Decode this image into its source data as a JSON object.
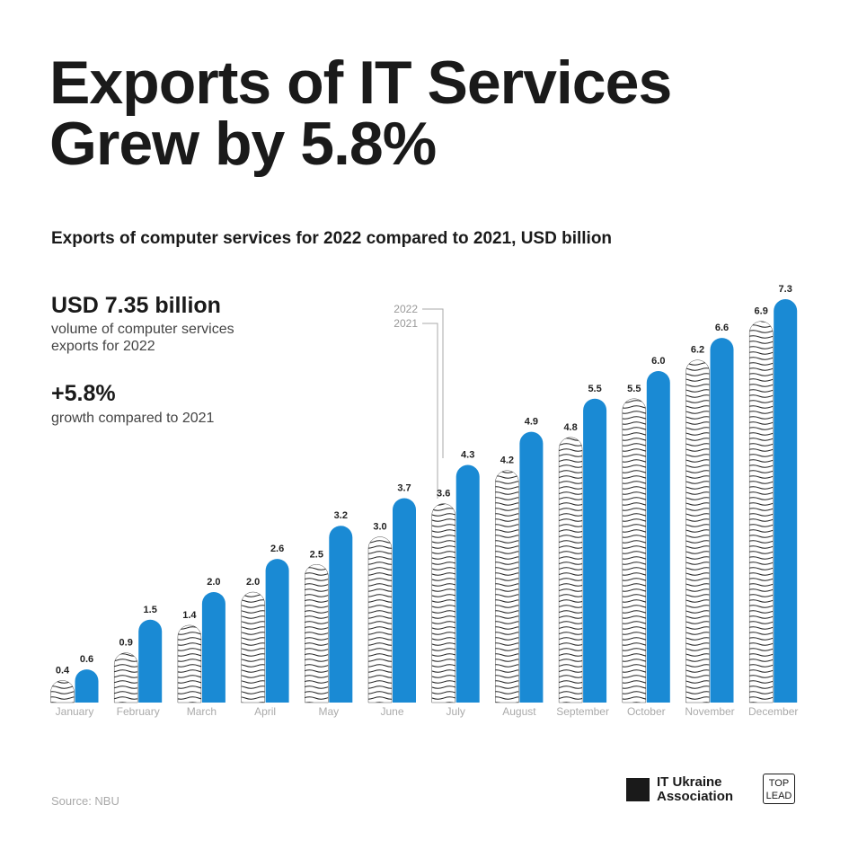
{
  "chart_data": {
    "type": "bar",
    "title": "Exports of IT Services Grew by 5.8%",
    "subtitle": "Exports of computer services for 2022 compared to 2021, USD billion",
    "highlights": [
      {
        "value": "USD 7.35 billion",
        "text": "volume of computer services exports for 2022"
      },
      {
        "value": "+5.8%",
        "text": "growth compared to 2021"
      }
    ],
    "categories": [
      "January",
      "February",
      "March",
      "April",
      "May",
      "June",
      "July",
      "August",
      "September",
      "October",
      "November",
      "December"
    ],
    "series": [
      {
        "name": "2021",
        "color": "#222222",
        "pattern": "waves",
        "values": [
          0.4,
          0.9,
          1.4,
          2.0,
          2.5,
          3.0,
          3.6,
          4.2,
          4.8,
          5.5,
          6.2,
          6.9
        ],
        "value_labels": [
          "0.4",
          "0.9",
          "1.4",
          "2.0",
          "2.5",
          "3.0",
          "3.6",
          "4.2",
          "4.8",
          "5.5",
          "6.2",
          "6.9"
        ]
      },
      {
        "name": "2022",
        "color": "#1a8ad4",
        "values": [
          0.6,
          1.5,
          2.0,
          2.6,
          3.2,
          3.7,
          4.3,
          4.9,
          5.5,
          6.0,
          6.6,
          7.3
        ],
        "value_labels": [
          "0.6",
          "1.5",
          "2.0",
          "2.6",
          "3.2",
          "3.7",
          "4.3",
          "4.9",
          "5.5",
          "6.0",
          "6.6",
          "7.3"
        ]
      }
    ],
    "source": "Source: NBU",
    "logos": [
      [
        "IT Ukraine",
        "Association"
      ],
      [
        "TOP",
        "LEAD"
      ]
    ]
  }
}
